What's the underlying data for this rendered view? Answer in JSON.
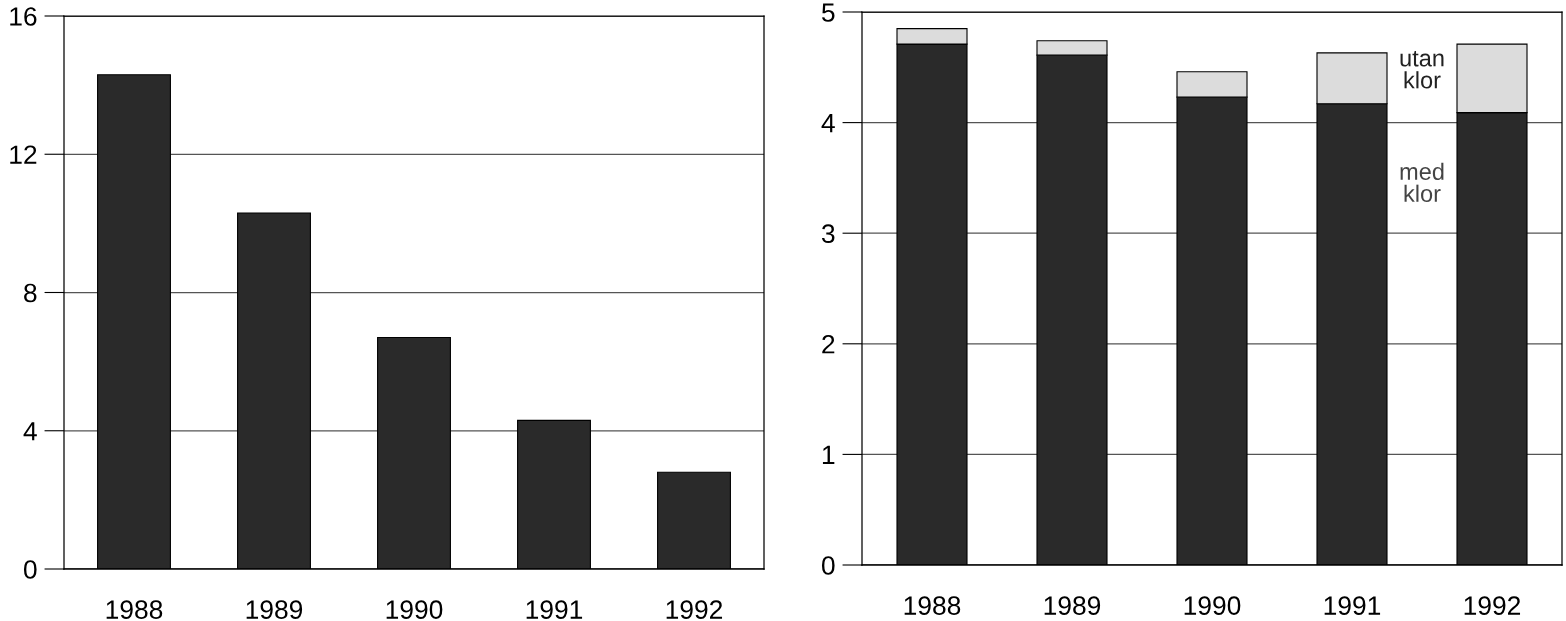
{
  "chart_data": [
    {
      "type": "bar",
      "categories": [
        "1988",
        "1989",
        "1990",
        "1991",
        "1992"
      ],
      "values": [
        14.3,
        10.3,
        6.7,
        4.3,
        2.8
      ],
      "color": "#2a2a2a",
      "ylim": [
        0,
        16
      ],
      "yticks": [
        0,
        4,
        8,
        12,
        16
      ],
      "grid": "y"
    },
    {
      "type": "bar",
      "stacked": true,
      "categories": [
        "1988",
        "1989",
        "1990",
        "1991",
        "1992"
      ],
      "series": [
        {
          "name": "med klor",
          "color": "#2a2a2a",
          "values": [
            4.71,
            4.61,
            4.23,
            4.17,
            4.09
          ]
        },
        {
          "name": "utan klor",
          "color": "#dcdcdc",
          "values": [
            0.14,
            0.13,
            0.23,
            0.46,
            0.62
          ]
        }
      ],
      "ylim": [
        0,
        5
      ],
      "yticks": [
        0,
        1,
        2,
        3,
        4,
        5
      ],
      "grid": "y"
    }
  ]
}
